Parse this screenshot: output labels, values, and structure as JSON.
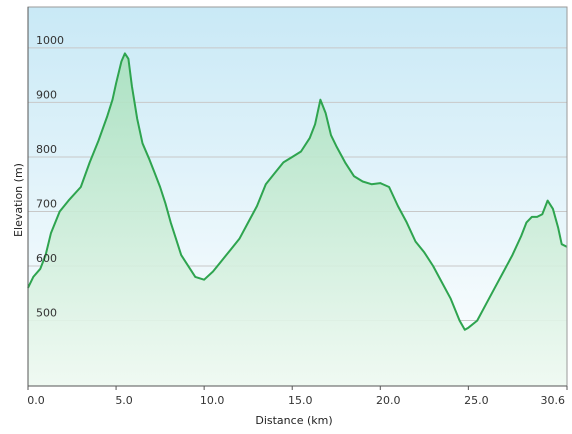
{
  "chart_data": {
    "type": "area",
    "title": "",
    "xlabel": "Distance  (km)",
    "ylabel": "Elevation (m)",
    "xlim": [
      0,
      30.6
    ],
    "ylim": [
      380,
      1075
    ],
    "x_ticks": [
      0,
      5,
      10,
      15,
      20,
      25,
      30.6
    ],
    "x_tick_labels": [
      "0.0",
      "5.0",
      "10.0",
      "15.0",
      "20.0",
      "25.0",
      "30.6"
    ],
    "y_ticks": [
      500,
      600,
      700,
      800,
      900,
      1000
    ],
    "y_tick_labels": [
      "500",
      "600",
      "700",
      "800",
      "900",
      "1000"
    ],
    "grid": "horizontal",
    "legend": "none",
    "colors": {
      "line": "#2ea44f",
      "background_top": "#c9e9f6",
      "background_bottom": "#ffffff",
      "fill_top": "#a8e0bd",
      "fill_bottom": "#eef9f1",
      "grid": "#c8c8c8",
      "axis": "#555555"
    },
    "series": [
      {
        "x": [
          0,
          0.3,
          0.7,
          1.0,
          1.3,
          1.8,
          2.3,
          3.0,
          3.5,
          4.0,
          4.5,
          4.8,
          5.0,
          5.3,
          5.5,
          5.7,
          5.9,
          6.2,
          6.5,
          6.9,
          7.2,
          7.5,
          7.8,
          8.1,
          8.4,
          8.7,
          9.0,
          9.5,
          10.0,
          10.5,
          11.0,
          11.5,
          12.0,
          12.5,
          13.0,
          13.5,
          14.0,
          14.5,
          15.0,
          15.5,
          16.0,
          16.3,
          16.6,
          16.9,
          17.2,
          17.5,
          18.0,
          18.5,
          19.0,
          19.5,
          20.0,
          20.5,
          21.0,
          21.5,
          22.0,
          22.5,
          23.0,
          23.5,
          24.0,
          24.5,
          24.8,
          25.0,
          25.5,
          26.0,
          26.5,
          27.0,
          27.5,
          28.0,
          28.3,
          28.6,
          28.9,
          29.2,
          29.5,
          29.8,
          30.1,
          30.3,
          30.6
        ],
        "y": [
          560,
          580,
          595,
          620,
          660,
          700,
          720,
          745,
          790,
          830,
          875,
          905,
          935,
          975,
          990,
          980,
          930,
          870,
          825,
          795,
          770,
          745,
          715,
          680,
          650,
          620,
          605,
          580,
          575,
          590,
          610,
          630,
          650,
          680,
          710,
          750,
          770,
          790,
          800,
          810,
          835,
          860,
          905,
          880,
          840,
          820,
          790,
          765,
          755,
          750,
          752,
          745,
          710,
          680,
          645,
          625,
          600,
          570,
          540,
          500,
          483,
          487,
          500,
          530,
          560,
          590,
          620,
          655,
          680,
          690,
          690,
          695,
          720,
          705,
          670,
          640,
          635
        ]
      }
    ]
  }
}
